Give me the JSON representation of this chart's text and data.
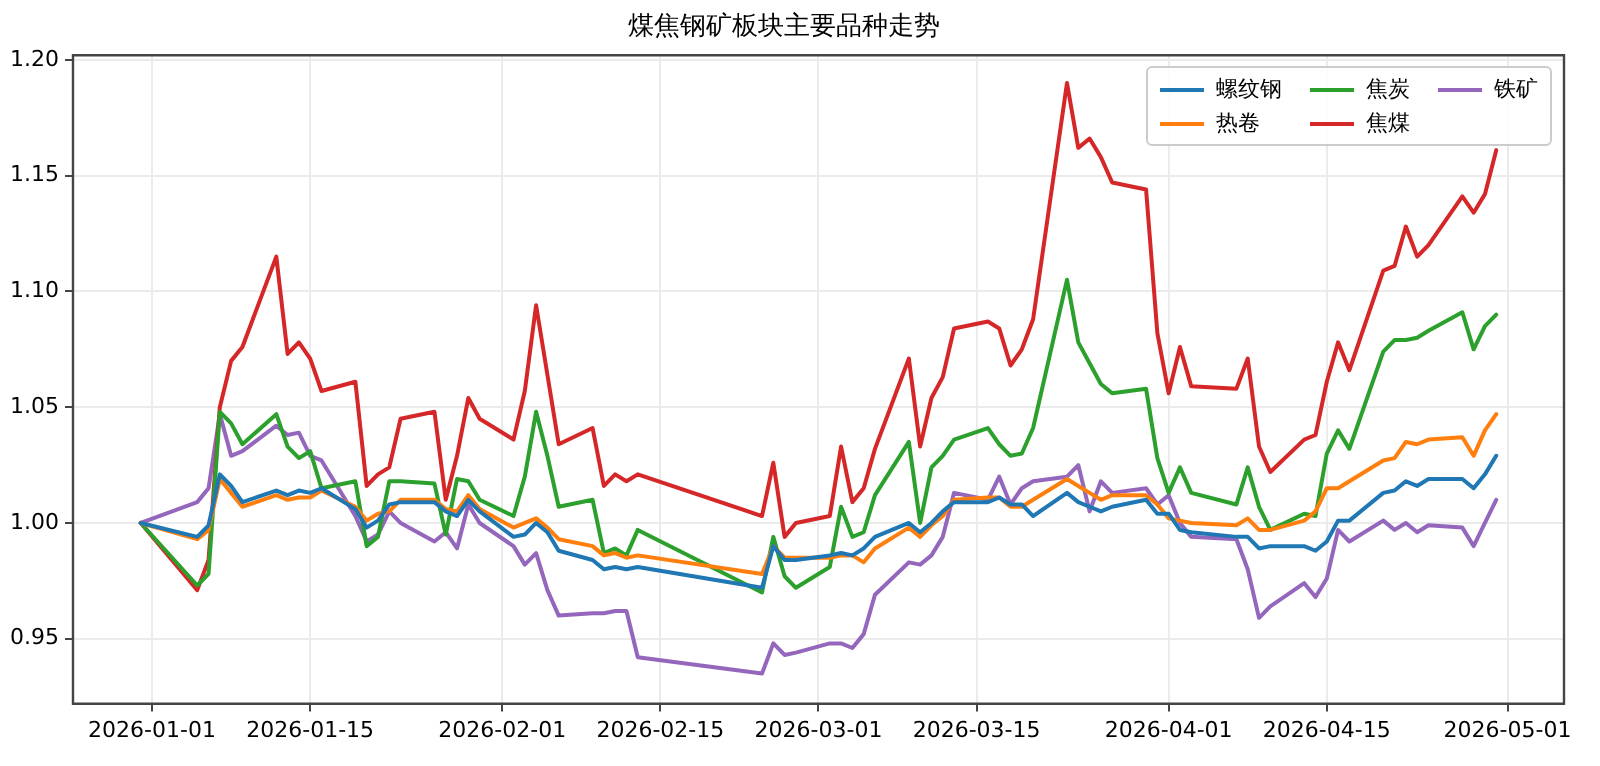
{
  "chart_data": {
    "type": "line",
    "title": "煤焦钢矿板块主要品种走势",
    "x": [
      "2025-12-31",
      "2026-01-05",
      "2026-01-06",
      "2026-01-07",
      "2026-01-08",
      "2026-01-09",
      "2026-01-12",
      "2026-01-13",
      "2026-01-14",
      "2026-01-15",
      "2026-01-16",
      "2026-01-19",
      "2026-01-20",
      "2026-01-21",
      "2026-01-22",
      "2026-01-23",
      "2026-01-26",
      "2026-01-27",
      "2026-01-28",
      "2026-01-29",
      "2026-01-30",
      "2026-02-02",
      "2026-02-03",
      "2026-02-04",
      "2026-02-05",
      "2026-02-06",
      "2026-02-09",
      "2026-02-10",
      "2026-02-11",
      "2026-02-12",
      "2026-02-13",
      "2026-02-24",
      "2026-02-25",
      "2026-02-26",
      "2026-02-27",
      "2026-03-02",
      "2026-03-03",
      "2026-03-04",
      "2026-03-05",
      "2026-03-06",
      "2026-03-09",
      "2026-03-10",
      "2026-03-11",
      "2026-03-12",
      "2026-03-13",
      "2026-03-16",
      "2026-03-17",
      "2026-03-18",
      "2026-03-19",
      "2026-03-20",
      "2026-03-23",
      "2026-03-24",
      "2026-03-25",
      "2026-03-26",
      "2026-03-27",
      "2026-03-30",
      "2026-03-31",
      "2026-04-01",
      "2026-04-02",
      "2026-04-03",
      "2026-04-07",
      "2026-04-08",
      "2026-04-09",
      "2026-04-10",
      "2026-04-13",
      "2026-04-14",
      "2026-04-15",
      "2026-04-16",
      "2026-04-17",
      "2026-04-20",
      "2026-04-21",
      "2026-04-22",
      "2026-04-23",
      "2026-04-24",
      "2026-04-27",
      "2026-04-28",
      "2026-04-29",
      "2026-04-30"
    ],
    "series": [
      {
        "name": "螺纹钢",
        "color": "#1f77b4",
        "values": [
          1.0,
          0.994,
          0.999,
          1.021,
          1.016,
          1.009,
          1.014,
          1.012,
          1.014,
          1.013,
          1.015,
          1.006,
          0.998,
          1.001,
          1.008,
          1.009,
          1.009,
          1.005,
          1.003,
          1.01,
          1.005,
          0.994,
          0.995,
          1.0,
          0.996,
          0.988,
          0.984,
          0.98,
          0.981,
          0.98,
          0.981,
          0.972,
          0.99,
          0.984,
          0.984,
          0.986,
          0.987,
          0.986,
          0.989,
          0.994,
          1.0,
          0.996,
          1.0,
          1.005,
          1.009,
          1.009,
          1.011,
          1.008,
          1.008,
          1.003,
          1.013,
          1.009,
          1.007,
          1.005,
          1.007,
          1.01,
          1.004,
          1.004,
          0.997,
          0.996,
          0.994,
          0.994,
          0.989,
          0.99,
          0.99,
          0.988,
          0.992,
          1.001,
          1.001,
          1.013,
          1.014,
          1.018,
          1.016,
          1.019,
          1.019,
          1.015,
          1.021,
          1.029
        ]
      },
      {
        "name": "热卷",
        "color": "#ff7f0e",
        "values": [
          1.0,
          0.993,
          0.997,
          1.019,
          1.013,
          1.007,
          1.012,
          1.01,
          1.011,
          1.011,
          1.014,
          1.007,
          1.001,
          1.004,
          1.005,
          1.01,
          1.01,
          1.006,
          1.005,
          1.012,
          1.006,
          0.998,
          1.0,
          1.002,
          0.998,
          0.993,
          0.99,
          0.986,
          0.987,
          0.985,
          0.986,
          0.978,
          0.99,
          0.985,
          0.985,
          0.985,
          0.986,
          0.986,
          0.983,
          0.989,
          0.998,
          0.994,
          0.999,
          1.003,
          1.01,
          1.011,
          1.011,
          1.007,
          1.007,
          1.01,
          1.019,
          1.016,
          1.013,
          1.01,
          1.012,
          1.012,
          1.008,
          1.002,
          1.001,
          1.0,
          0.999,
          1.002,
          0.997,
          0.997,
          1.001,
          1.005,
          1.015,
          1.015,
          1.018,
          1.027,
          1.028,
          1.035,
          1.034,
          1.036,
          1.037,
          1.029,
          1.04,
          1.047
        ]
      },
      {
        "name": "焦炭",
        "color": "#2ca02c",
        "values": [
          1.0,
          0.973,
          0.978,
          1.048,
          1.043,
          1.034,
          1.047,
          1.033,
          1.028,
          1.031,
          1.015,
          1.018,
          0.99,
          0.994,
          1.018,
          1.018,
          1.017,
          0.995,
          1.019,
          1.018,
          1.01,
          1.003,
          1.02,
          1.048,
          1.029,
          1.007,
          1.01,
          0.987,
          0.989,
          0.986,
          0.997,
          0.97,
          0.994,
          0.977,
          0.972,
          0.981,
          1.007,
          0.994,
          0.996,
          1.012,
          1.035,
          1.0,
          1.024,
          1.029,
          1.036,
          1.041,
          1.034,
          1.029,
          1.03,
          1.041,
          1.105,
          1.078,
          1.069,
          1.06,
          1.056,
          1.058,
          1.028,
          1.013,
          1.024,
          1.013,
          1.008,
          1.024,
          1.007,
          0.997,
          1.004,
          1.003,
          1.03,
          1.04,
          1.032,
          1.074,
          1.079,
          1.079,
          1.08,
          1.083,
          1.091,
          1.075,
          1.085,
          1.09
        ]
      },
      {
        "name": "焦煤",
        "color": "#d62728",
        "values": [
          1.0,
          0.971,
          0.984,
          1.05,
          1.07,
          1.076,
          1.115,
          1.073,
          1.078,
          1.071,
          1.057,
          1.061,
          1.016,
          1.021,
          1.024,
          1.045,
          1.048,
          1.01,
          1.029,
          1.054,
          1.045,
          1.036,
          1.057,
          1.094,
          1.064,
          1.034,
          1.041,
          1.016,
          1.021,
          1.018,
          1.021,
          1.003,
          1.026,
          0.994,
          1.0,
          1.003,
          1.033,
          1.009,
          1.015,
          1.032,
          1.071,
          1.033,
          1.054,
          1.063,
          1.084,
          1.087,
          1.084,
          1.068,
          1.075,
          1.088,
          1.19,
          1.162,
          1.166,
          1.158,
          1.147,
          1.144,
          1.082,
          1.056,
          1.076,
          1.059,
          1.058,
          1.071,
          1.033,
          1.022,
          1.036,
          1.038,
          1.061,
          1.078,
          1.066,
          1.109,
          1.111,
          1.128,
          1.115,
          1.12,
          1.141,
          1.134,
          1.142,
          1.161
        ]
      },
      {
        "name": "铁矿",
        "color": "#9467bd",
        "values": [
          1.0,
          1.009,
          1.015,
          1.047,
          1.029,
          1.031,
          1.042,
          1.038,
          1.039,
          1.029,
          1.027,
          1.003,
          0.992,
          0.995,
          1.005,
          1.0,
          0.992,
          0.996,
          0.989,
          1.008,
          1.0,
          0.99,
          0.982,
          0.987,
          0.971,
          0.96,
          0.961,
          0.961,
          0.962,
          0.962,
          0.942,
          0.935,
          0.948,
          0.943,
          0.944,
          0.948,
          0.948,
          0.946,
          0.952,
          0.969,
          0.983,
          0.982,
          0.986,
          0.994,
          1.013,
          1.01,
          1.02,
          1.008,
          1.015,
          1.018,
          1.02,
          1.025,
          1.005,
          1.018,
          1.013,
          1.015,
          1.008,
          1.012,
          1.0,
          0.994,
          0.993,
          0.98,
          0.959,
          0.964,
          0.974,
          0.968,
          0.976,
          0.997,
          0.992,
          1.001,
          0.997,
          1.0,
          0.996,
          0.999,
          0.998,
          0.99,
          1.0,
          1.01
        ]
      }
    ],
    "xlim": [
      "2025-12-25",
      "2026-05-06"
    ],
    "xticks": [
      "2026-01-01",
      "2026-01-15",
      "2026-02-01",
      "2026-02-15",
      "2026-03-01",
      "2026-03-15",
      "2026-04-01",
      "2026-04-15",
      "2026-05-01"
    ],
    "ylim": [
      0.922,
      1.202
    ],
    "yticks": [
      {
        "value": 0.95,
        "label": "0.95"
      },
      {
        "value": 1.0,
        "label": "1.00"
      },
      {
        "value": 1.05,
        "label": "1.05"
      },
      {
        "value": 1.1,
        "label": "1.10"
      },
      {
        "value": 1.15,
        "label": "1.15"
      },
      {
        "value": 1.2,
        "label": "1.20"
      }
    ],
    "grid": true,
    "legend": "top right"
  }
}
